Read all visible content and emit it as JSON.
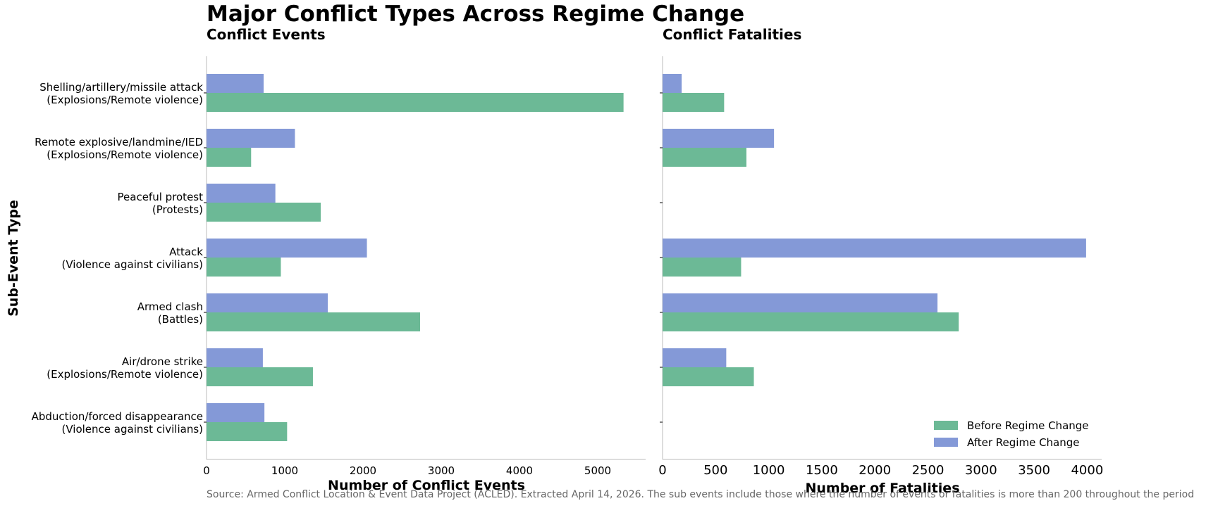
{
  "title": "Major Conflict Types Across Regime Change",
  "source": "Source: Armed Conflict Location & Event Data Project (ACLED). Extracted April 14, 2026. The sub events include those where the number of events or fatalities is more than 200 throughout the period",
  "colors": {
    "before": "#6cb996",
    "after": "#8499d7",
    "axis": "#bbbbbb"
  },
  "chart_data": [
    {
      "type": "bar",
      "orientation": "horizontal",
      "title": "Conflict Events",
      "xlabel": "Number of Conflict Events",
      "ylabel": "Sub-Event Type",
      "xlim": [
        0,
        5600
      ],
      "xticks": [
        0,
        1000,
        2000,
        3000,
        4000,
        5000
      ],
      "categories": [
        [
          "Shelling/artillery/missile attack",
          "(Explosions/Remote violence)"
        ],
        [
          "Remote explosive/landmine/IED",
          "(Explosions/Remote violence)"
        ],
        [
          "Peaceful protest",
          "(Protests)"
        ],
        [
          "Attack",
          "(Violence against civilians)"
        ],
        [
          "Armed clash",
          "(Battles)"
        ],
        [
          "Air/drone strike",
          "(Explosions/Remote violence)"
        ],
        [
          "Abduction/forced disappearance",
          "(Violence against civilians)"
        ]
      ],
      "series": [
        {
          "name": "Before Regime Change",
          "values": [
            5330,
            570,
            1460,
            950,
            2730,
            1360,
            1030
          ]
        },
        {
          "name": "After Regime Change",
          "values": [
            730,
            1130,
            880,
            2050,
            1550,
            720,
            740
          ]
        }
      ]
    },
    {
      "type": "bar",
      "orientation": "horizontal",
      "title": "Conflict Fatalities",
      "xlabel": "Number of Fatalities",
      "xlim": [
        0,
        4200
      ],
      "xticks": [
        0,
        500,
        1000,
        1500,
        2000,
        2500,
        3000,
        3500,
        4000
      ],
      "legend": {
        "position": "lower-right",
        "entries": [
          "Before Regime Change",
          "After Regime Change"
        ]
      },
      "series": [
        {
          "name": "Before Regime Change",
          "values": [
            580,
            790,
            0,
            740,
            2790,
            860,
            0
          ]
        },
        {
          "name": "After Regime Change",
          "values": [
            180,
            1050,
            0,
            3990,
            2590,
            600,
            0
          ]
        }
      ]
    }
  ]
}
